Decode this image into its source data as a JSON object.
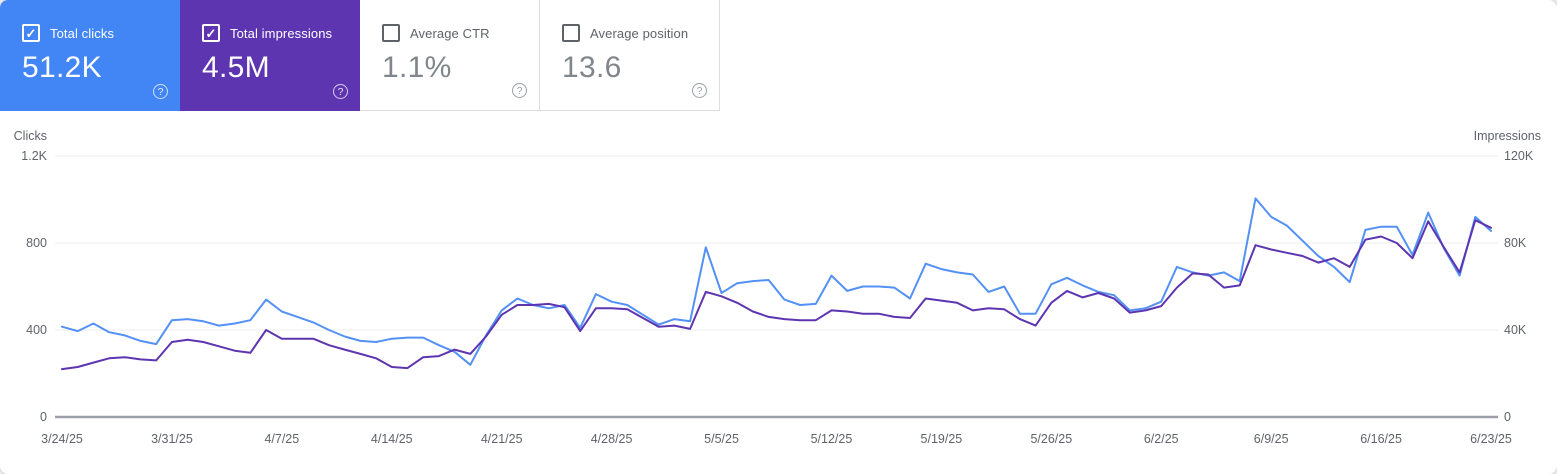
{
  "cards": [
    {
      "label": "Total clicks",
      "value": "51.2K",
      "checked": true,
      "bg": "#4285f4"
    },
    {
      "label": "Total impressions",
      "value": "4.5M",
      "checked": true,
      "bg": "#5e35b1"
    },
    {
      "label": "Average CTR",
      "value": "1.1%",
      "checked": false,
      "bg": "#ffffff"
    },
    {
      "label": "Average position",
      "value": "13.6",
      "checked": false,
      "bg": "#ffffff"
    }
  ],
  "help_icon_glyph": "?",
  "chart_data": {
    "type": "line",
    "x": [
      "3/24/25",
      "3/25/25",
      "3/26/25",
      "3/27/25",
      "3/28/25",
      "3/29/25",
      "3/30/25",
      "3/31/25",
      "4/1/25",
      "4/2/25",
      "4/3/25",
      "4/4/25",
      "4/5/25",
      "4/6/25",
      "4/7/25",
      "4/8/25",
      "4/9/25",
      "4/10/25",
      "4/11/25",
      "4/12/25",
      "4/13/25",
      "4/14/25",
      "4/15/25",
      "4/16/25",
      "4/17/25",
      "4/18/25",
      "4/19/25",
      "4/20/25",
      "4/21/25",
      "4/22/25",
      "4/23/25",
      "4/24/25",
      "4/25/25",
      "4/26/25",
      "4/27/25",
      "4/28/25",
      "4/29/25",
      "4/30/25",
      "5/1/25",
      "5/2/25",
      "5/3/25",
      "5/4/25",
      "5/5/25",
      "5/6/25",
      "5/7/25",
      "5/8/25",
      "5/9/25",
      "5/10/25",
      "5/11/25",
      "5/12/25",
      "5/13/25",
      "5/14/25",
      "5/15/25",
      "5/16/25",
      "5/17/25",
      "5/18/25",
      "5/19/25",
      "5/20/25",
      "5/21/25",
      "5/22/25",
      "5/23/25",
      "5/24/25",
      "5/25/25",
      "5/26/25",
      "5/27/25",
      "5/28/25",
      "5/29/25",
      "5/30/25",
      "5/31/25",
      "6/1/25",
      "6/2/25",
      "6/3/25",
      "6/4/25",
      "6/5/25",
      "6/6/25",
      "6/7/25",
      "6/8/25",
      "6/9/25",
      "6/10/25",
      "6/11/25",
      "6/12/25",
      "6/13/25",
      "6/14/25",
      "6/15/25",
      "6/16/25",
      "6/17/25",
      "6/18/25",
      "6/19/25",
      "6/20/25",
      "6/21/25",
      "6/22/25",
      "6/23/25"
    ],
    "series": [
      {
        "name": "Clicks",
        "axis": "left",
        "color": "#5491f5",
        "values": [
          415,
          395,
          430,
          390,
          375,
          350,
          335,
          445,
          450,
          440,
          420,
          430,
          445,
          540,
          485,
          460,
          435,
          400,
          370,
          350,
          345,
          360,
          365,
          365,
          330,
          300,
          240,
          375,
          490,
          545,
          515,
          500,
          515,
          410,
          565,
          530,
          515,
          470,
          425,
          450,
          440,
          780,
          570,
          615,
          625,
          630,
          540,
          515,
          520,
          650,
          580,
          600,
          600,
          595,
          545,
          705,
          680,
          665,
          655,
          575,
          600,
          475,
          475,
          610,
          640,
          605,
          575,
          560,
          490,
          500,
          530,
          690,
          665,
          650,
          665,
          625,
          1005,
          920,
          880,
          810,
          740,
          690,
          620,
          860,
          875,
          875,
          745,
          940,
          775,
          650,
          920,
          855
        ]
      },
      {
        "name": "Impressions",
        "axis": "right",
        "color": "#5e35b1",
        "values": [
          22000,
          23000,
          25000,
          27000,
          27500,
          26500,
          26000,
          34500,
          35500,
          34500,
          32500,
          30500,
          29500,
          40000,
          36000,
          36000,
          36000,
          33000,
          31000,
          29000,
          27000,
          23000,
          22500,
          27500,
          28000,
          31000,
          29000,
          37000,
          47000,
          51500,
          51500,
          52000,
          50500,
          39500,
          50000,
          50000,
          49500,
          45500,
          41500,
          42000,
          40500,
          57500,
          55500,
          52500,
          48500,
          46000,
          45000,
          44500,
          44500,
          49000,
          48500,
          47500,
          47500,
          46000,
          45500,
          54500,
          53500,
          52500,
          49000,
          50000,
          49500,
          45000,
          42000,
          52500,
          58000,
          55000,
          57000,
          54500,
          48000,
          49000,
          51000,
          59500,
          66000,
          65500,
          59500,
          60500,
          79000,
          77000,
          75500,
          74000,
          71000,
          73000,
          69000,
          81500,
          83000,
          80000,
          73000,
          90000,
          78000,
          66500,
          90500,
          87000
        ]
      }
    ],
    "left_axis": {
      "label": "Clicks",
      "max": 1200,
      "tick_values": [
        0,
        400,
        800,
        1200
      ],
      "ticks": [
        "0",
        "400",
        "800",
        "1.2K"
      ]
    },
    "right_axis": {
      "label": "Impressions",
      "max": 120000,
      "tick_values": [
        0,
        40000,
        80000,
        120000
      ],
      "ticks": [
        "0",
        "40K",
        "80K",
        "120K"
      ]
    },
    "x_tick_labels": [
      "3/24/25",
      "3/31/25",
      "4/7/25",
      "4/14/25",
      "4/21/25",
      "4/28/25",
      "5/5/25",
      "5/12/25",
      "5/19/25",
      "5/26/25",
      "6/2/25",
      "6/9/25",
      "6/16/25",
      "6/23/25"
    ],
    "grid": "horizontal-only",
    "legend_position": "none",
    "colors": {
      "grid": "#ebedef",
      "baseline": "#9aa0a6",
      "tick_text": "#5f6368",
      "axis_title_text": "#5f6368"
    }
  }
}
